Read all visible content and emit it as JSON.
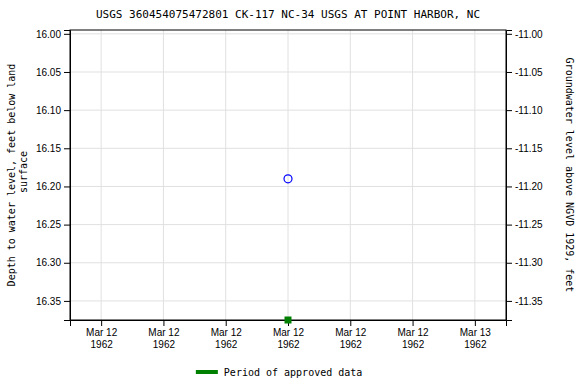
{
  "chart_data": {
    "type": "scatter",
    "title": "USGS 360454075472801 CK-117 NC-34 USGS AT POINT HARBOR, NC",
    "y_label": "Depth to water level, feet below land\n surface",
    "y2_label": "Groundwater level above NGVD 1929, feet",
    "categories": [
      "Mar 12\n1962",
      "Mar 12\n1962",
      "Mar 12\n1962",
      "Mar 12\n1962",
      "Mar 12\n1962",
      "Mar 12\n1962",
      "Mar 13\n1962"
    ],
    "ylim": [
      16.375,
      15.995
    ],
    "yticks": [
      {
        "value": 16.0,
        "label": "16.00"
      },
      16.05,
      {
        "value": 16.1,
        "label": "16.10"
      },
      16.15,
      {
        "value": 16.2,
        "label": "16.20"
      },
      16.25,
      {
        "value": 16.3,
        "label": "16.30"
      },
      16.35
    ],
    "y2lim": [
      -11.375,
      -10.995
    ],
    "y2ticks": [
      {
        "value": -11.0,
        "label": "-11.00"
      },
      -11.05,
      {
        "value": -11.1,
        "label": "-11.10"
      },
      -11.15,
      {
        "value": -11.2,
        "label": "-11.20"
      },
      -11.25,
      {
        "value": -11.3,
        "label": "-11.30"
      },
      -11.35
    ],
    "grid": true,
    "legend": "bottom",
    "series": [
      {
        "color": "#0000ff",
        "marker": "circle",
        "values": [
          null,
          null,
          null,
          16.19,
          null,
          null,
          null
        ]
      },
      {
        "name": "Period of approved data",
        "color": "#008000",
        "marker": "square",
        "values": [
          null,
          null,
          null,
          16.375,
          null,
          null,
          null
        ]
      }
    ]
  }
}
